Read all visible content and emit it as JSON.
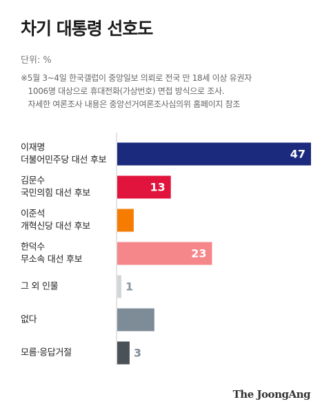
{
  "header": {
    "title": "차기 대통령 선호도",
    "unit": "단위: %",
    "note_lines": [
      "※5월 3~4일 한국갤럽이 중앙일보 의뢰로 전국 만 18세 이상 유권자",
      "   1006명 대상으로 휴대전화(가상번호) 면접 방식으로 조사.",
      "   자세한 여론조사 내용은 중앙선거여론조사심의위 홈페이지 참조"
    ]
  },
  "chart_data": {
    "type": "bar",
    "orientation": "horizontal",
    "categories": [
      [
        "이재명",
        "더불어민주당 대선 후보"
      ],
      [
        "김문수",
        "국민의힘 대선 후보"
      ],
      [
        "이준석",
        "개혁신당 대선 후보"
      ],
      [
        "한덕수",
        "무소속 대선 후보"
      ],
      [
        "그 외 인물"
      ],
      [
        "없다"
      ],
      [
        "모름·응답거절"
      ]
    ],
    "values": [
      47,
      13,
      4,
      23,
      1,
      9,
      3
    ],
    "colors": [
      "#1b2a7c",
      "#e0143c",
      "#f57c00",
      "#f5868a",
      "#d3d6d9",
      "#7e8c97",
      "#4a5157"
    ],
    "label_colors": [
      "#ffffff",
      "#ffffff",
      "#ffffff",
      "#ffffff",
      "#8a959d",
      "#7e8c97",
      "#7e8c97"
    ],
    "xlim": [
      0,
      47
    ],
    "grid": false
  },
  "footer": {
    "brand": "The JoongAng"
  }
}
